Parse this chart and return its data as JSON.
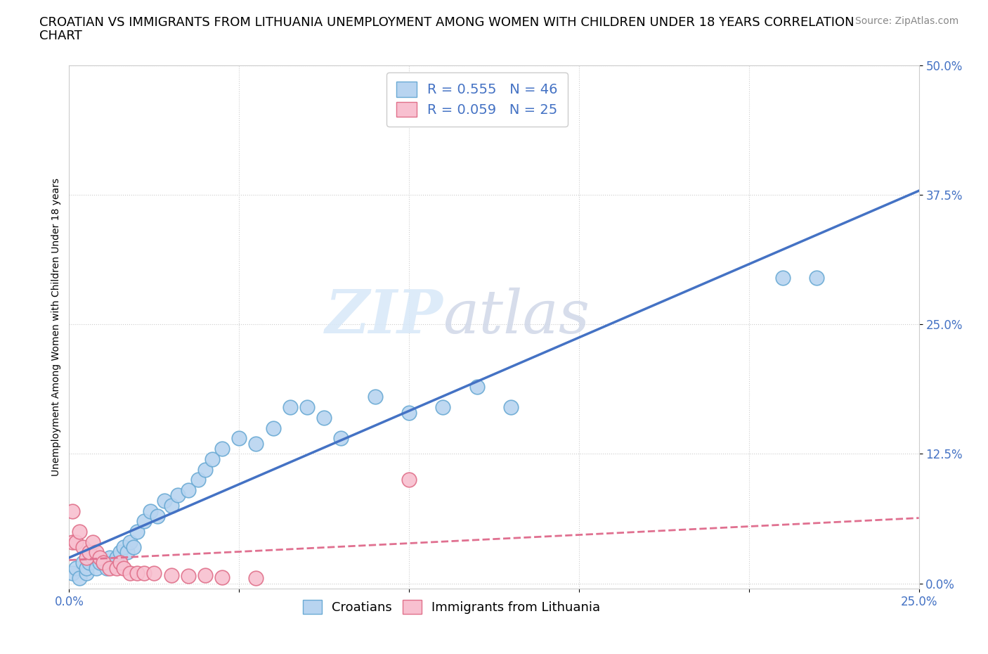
{
  "title_line1": "CROATIAN VS IMMIGRANTS FROM LITHUANIA UNEMPLOYMENT AMONG WOMEN WITH CHILDREN UNDER 18 YEARS CORRELATION",
  "title_line2": "CHART",
  "source": "Source: ZipAtlas.com",
  "ylabel_label": "Unemployment Among Women with Children Under 18 years",
  "xlim": [
    0.0,
    0.25
  ],
  "ylim": [
    -0.005,
    0.5
  ],
  "watermark_zip": "ZIP",
  "watermark_atlas": "atlas",
  "croatian_R": 0.555,
  "croatian_N": 46,
  "lithuanian_R": 0.059,
  "lithuanian_N": 25,
  "croatian_color": "#b8d4f0",
  "croatian_edge": "#6aaad4",
  "croatian_line_color": "#4472c4",
  "lithuanian_color": "#f8c0d0",
  "lithuanian_edge": "#e0708a",
  "lithuanian_line_color": "#e07090",
  "croatian_x": [
    0.001,
    0.002,
    0.003,
    0.004,
    0.005,
    0.005,
    0.006,
    0.007,
    0.008,
    0.009,
    0.01,
    0.011,
    0.012,
    0.013,
    0.014,
    0.015,
    0.016,
    0.017,
    0.018,
    0.019,
    0.02,
    0.022,
    0.024,
    0.026,
    0.028,
    0.03,
    0.032,
    0.035,
    0.038,
    0.04,
    0.042,
    0.045,
    0.05,
    0.055,
    0.06,
    0.065,
    0.07,
    0.075,
    0.08,
    0.09,
    0.1,
    0.11,
    0.12,
    0.13,
    0.21,
    0.22
  ],
  "croatian_y": [
    0.01,
    0.015,
    0.005,
    0.02,
    0.01,
    0.015,
    0.02,
    0.025,
    0.015,
    0.02,
    0.02,
    0.015,
    0.025,
    0.02,
    0.025,
    0.03,
    0.035,
    0.03,
    0.04,
    0.035,
    0.05,
    0.06,
    0.07,
    0.065,
    0.08,
    0.075,
    0.085,
    0.09,
    0.1,
    0.11,
    0.12,
    0.13,
    0.14,
    0.135,
    0.15,
    0.17,
    0.17,
    0.16,
    0.14,
    0.18,
    0.165,
    0.17,
    0.19,
    0.17,
    0.295,
    0.295
  ],
  "lithuanian_x": [
    0.001,
    0.001,
    0.002,
    0.003,
    0.004,
    0.005,
    0.006,
    0.007,
    0.008,
    0.009,
    0.01,
    0.012,
    0.014,
    0.015,
    0.016,
    0.018,
    0.02,
    0.022,
    0.025,
    0.03,
    0.035,
    0.04,
    0.045,
    0.055,
    0.1
  ],
  "lithuanian_y": [
    0.04,
    0.07,
    0.04,
    0.05,
    0.035,
    0.025,
    0.03,
    0.04,
    0.03,
    0.025,
    0.02,
    0.015,
    0.015,
    0.02,
    0.015,
    0.01,
    0.01,
    0.01,
    0.01,
    0.008,
    0.007,
    0.008,
    0.006,
    0.005,
    0.1
  ],
  "grid_color": "#cccccc",
  "background_color": "#ffffff",
  "title_fontsize": 13,
  "axis_label_fontsize": 10,
  "tick_fontsize": 12,
  "legend_fontsize": 14,
  "source_fontsize": 10
}
